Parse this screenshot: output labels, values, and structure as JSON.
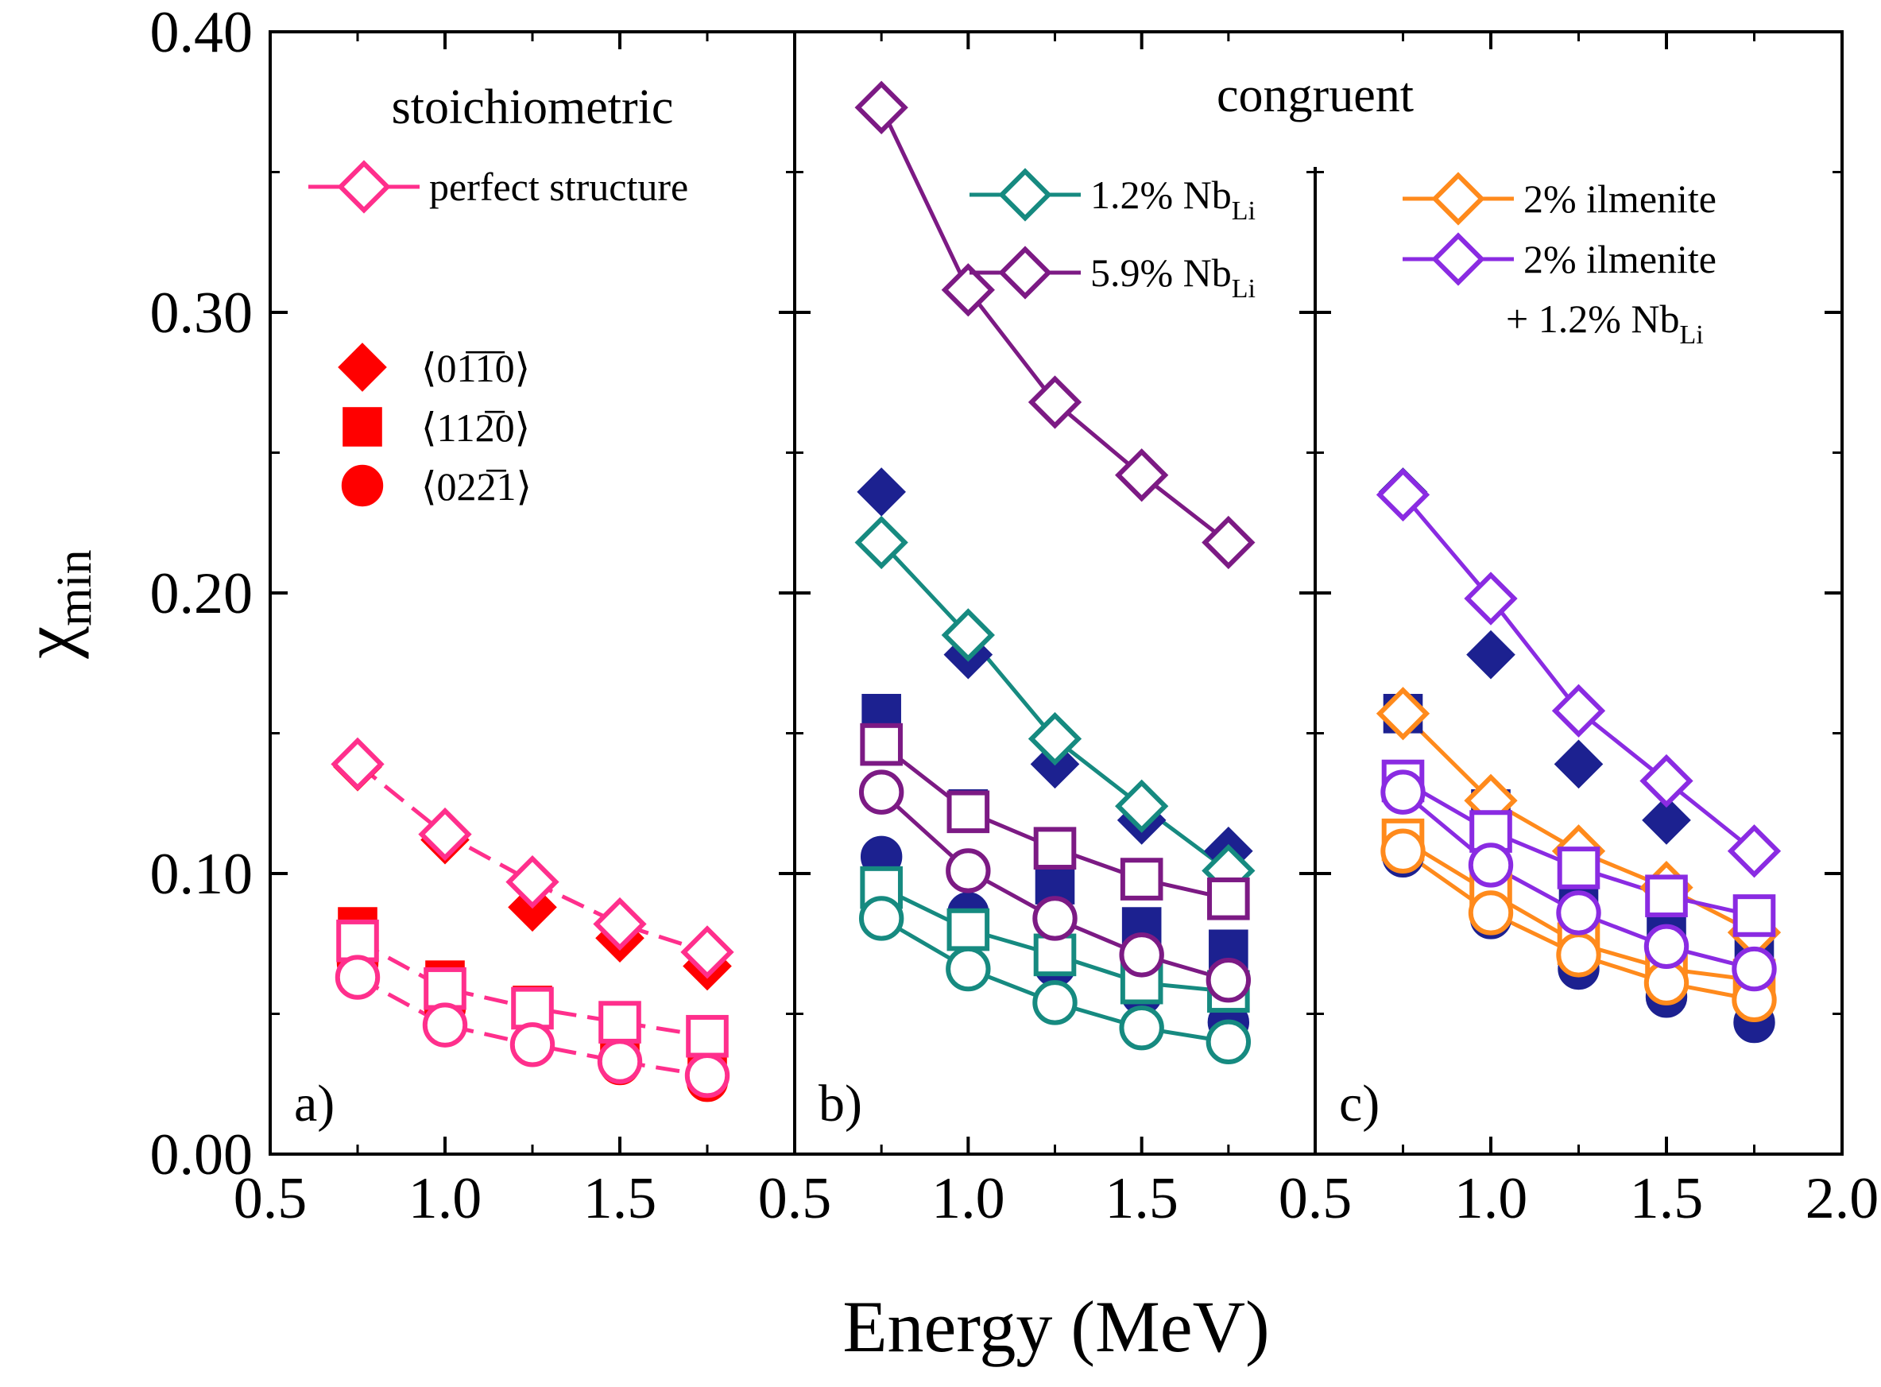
{
  "chart_data": {
    "type": "line",
    "ylabel": "χ",
    "ylabel_sub": "min",
    "xlabel": "Energy (MeV)",
    "ylim": [
      0.0,
      0.4
    ],
    "y_ticks": [
      0.0,
      0.1,
      0.2,
      0.3,
      0.4
    ],
    "y_tick_labels": [
      "0.00",
      "0.10",
      "0.20",
      "0.30",
      "0.40"
    ],
    "shared_x_tick_labels": [
      "0.5",
      "1.0",
      "1.5",
      "0.5",
      "1.0",
      "1.5",
      "0.5",
      "1.0",
      "1.5",
      "2.0"
    ],
    "colors": {
      "red": "#ff0000",
      "pink": "#ff2f8c",
      "navy": "#1c2190",
      "teal": "#168a80",
      "purple": "#7c1a84",
      "orange": "#ff8a1c",
      "violet": "#8a2be2"
    },
    "panels": [
      {
        "id": "a",
        "label": "a)",
        "title": "stoichiometric",
        "xlim": [
          0.5,
          2.0
        ],
        "legend_lines": [
          {
            "text": "perfect structure",
            "marker": "diamond",
            "color": "#ff2f8c"
          }
        ],
        "marker_legend": [
          {
            "marker": "diamond",
            "text": "⟨01̅1̅0⟩"
          },
          {
            "marker": "square",
            "text": "⟨112̅0⟩"
          },
          {
            "marker": "circle",
            "text": "⟨022̅1⟩"
          }
        ],
        "series": [
          {
            "name": "perfect structure ⟨01-10⟩",
            "marker": "diamond",
            "fill": "none",
            "line": "dashed",
            "color": "#ff2f8c",
            "x": [
              0.75,
              1.0,
              1.25,
              1.5,
              1.75
            ],
            "y": [
              0.139,
              0.114,
              0.097,
              0.082,
              0.072
            ]
          },
          {
            "name": "perfect structure ⟨11-20⟩",
            "marker": "square",
            "fill": "none",
            "line": "dashed",
            "color": "#ff2f8c",
            "x": [
              0.75,
              1.0,
              1.25,
              1.5,
              1.75
            ],
            "y": [
              0.076,
              0.059,
              0.052,
              0.047,
              0.042
            ]
          },
          {
            "name": "perfect structure ⟨02-21⟩",
            "marker": "circle",
            "fill": "none",
            "line": "dashed",
            "color": "#ff2f8c",
            "x": [
              0.75,
              1.0,
              1.25,
              1.5,
              1.75
            ],
            "y": [
              0.063,
              0.046,
              0.039,
              0.033,
              0.028
            ]
          },
          {
            "name": "stoichiometric ⟨01-10⟩",
            "marker": "diamond",
            "fill": "solid",
            "line": "none",
            "color": "#ff0000",
            "x": [
              0.75,
              1.0,
              1.25,
              1.5,
              1.75
            ],
            "y": [
              0.138,
              0.112,
              0.088,
              0.077,
              0.067
            ]
          },
          {
            "name": "stoichiometric ⟨11-20⟩",
            "marker": "square",
            "fill": "solid",
            "line": "none",
            "color": "#ff0000",
            "x": [
              0.75,
              1.0,
              1.25,
              1.5,
              1.75
            ],
            "y": [
              0.081,
              0.062,
              0.053,
              0.041,
              0.035
            ]
          },
          {
            "name": "stoichiometric ⟨02-21⟩",
            "marker": "circle",
            "fill": "solid",
            "line": "none",
            "color": "#ff0000",
            "x": [
              0.75,
              1.0,
              1.25,
              1.5,
              1.75
            ],
            "y": [
              0.068,
              0.052,
              0.039,
              0.032,
              0.026
            ]
          }
        ]
      },
      {
        "id": "b",
        "label": "b)",
        "title": "congruent",
        "xlim": [
          0.5,
          2.0
        ],
        "legend_lines": [
          {
            "text": "1.2% Nb",
            "sub": "Li",
            "marker": "diamond",
            "color": "#168a80"
          },
          {
            "text": "5.9% Nb",
            "sub": "Li",
            "marker": "diamond",
            "color": "#7c1a84"
          }
        ],
        "series": [
          {
            "name": "congruent ⟨01-10⟩",
            "marker": "diamond",
            "fill": "solid",
            "line": "none",
            "color": "#1c2190",
            "x": [
              0.75,
              1.0,
              1.25,
              1.5,
              1.75
            ],
            "y": [
              0.236,
              0.178,
              0.139,
              0.119,
              0.108
            ]
          },
          {
            "name": "congruent ⟨11-20⟩",
            "marker": "square",
            "fill": "solid",
            "line": "none",
            "color": "#1c2190",
            "x": [
              0.75,
              1.0,
              1.25,
              1.5,
              1.75
            ],
            "y": [
              0.157,
              0.123,
              0.096,
              0.081,
              0.073
            ]
          },
          {
            "name": "congruent ⟨02-21⟩",
            "marker": "circle",
            "fill": "solid",
            "line": "none",
            "color": "#1c2190",
            "x": [
              0.75,
              1.0,
              1.25,
              1.5,
              1.75
            ],
            "y": [
              0.106,
              0.086,
              0.067,
              0.057,
              0.047
            ]
          },
          {
            "name": "1.2% Nb_Li ⟨01-10⟩",
            "marker": "diamond",
            "fill": "none",
            "line": "solid",
            "color": "#168a80",
            "x": [
              0.75,
              1.0,
              1.25,
              1.5,
              1.75
            ],
            "y": [
              0.218,
              0.185,
              0.148,
              0.124,
              0.101
            ]
          },
          {
            "name": "1.2% Nb_Li ⟨11-20⟩",
            "marker": "square",
            "fill": "none",
            "line": "solid",
            "color": "#168a80",
            "x": [
              0.75,
              1.0,
              1.25,
              1.5,
              1.75
            ],
            "y": [
              0.095,
              0.08,
              0.071,
              0.061,
              0.058
            ]
          },
          {
            "name": "1.2% Nb_Li ⟨02-21⟩",
            "marker": "circle",
            "fill": "none",
            "line": "solid",
            "color": "#168a80",
            "x": [
              0.75,
              1.0,
              1.25,
              1.5,
              1.75
            ],
            "y": [
              0.084,
              0.066,
              0.054,
              0.045,
              0.04
            ]
          },
          {
            "name": "5.9% Nb_Li ⟨01-10⟩",
            "marker": "diamond",
            "fill": "none",
            "line": "solid",
            "color": "#7c1a84",
            "x": [
              0.75,
              1.0,
              1.25,
              1.5,
              1.75
            ],
            "y": [
              0.373,
              0.308,
              0.268,
              0.242,
              0.218
            ]
          },
          {
            "name": "5.9% Nb_Li ⟨11-20⟩",
            "marker": "square",
            "fill": "none",
            "line": "solid",
            "color": "#7c1a84",
            "x": [
              0.75,
              1.0,
              1.25,
              1.5,
              1.75
            ],
            "y": [
              0.146,
              0.122,
              0.109,
              0.098,
              0.091
            ]
          },
          {
            "name": "5.9% Nb_Li ⟨02-21⟩",
            "marker": "circle",
            "fill": "none",
            "line": "solid",
            "color": "#7c1a84",
            "x": [
              0.75,
              1.0,
              1.25,
              1.5,
              1.75
            ],
            "y": [
              0.129,
              0.101,
              0.084,
              0.071,
              0.062
            ]
          }
        ]
      },
      {
        "id": "c",
        "label": "c)",
        "title": "",
        "xlim": [
          0.5,
          2.0
        ],
        "legend_lines": [
          {
            "text": "2% ilmenite",
            "marker": "diamond",
            "color": "#ff8a1c"
          },
          {
            "text": "2% ilmenite",
            "marker": "diamond",
            "color": "#8a2be2"
          }
        ],
        "legend_extra": {
          "text": "+ 1.2% Nb",
          "sub": "Li"
        },
        "series": [
          {
            "name": "congruent ⟨01-10⟩",
            "marker": "diamond",
            "fill": "solid",
            "line": "none",
            "color": "#1c2190",
            "x": [
              0.75,
              1.0,
              1.25,
              1.5,
              1.75
            ],
            "y": [
              0.236,
              0.178,
              0.139,
              0.119,
              0.108
            ]
          },
          {
            "name": "congruent ⟨11-20⟩",
            "marker": "square",
            "fill": "solid",
            "line": "none",
            "color": "#1c2190",
            "x": [
              0.75,
              1.0,
              1.25,
              1.5,
              1.75
            ],
            "y": [
              0.157,
              0.123,
              0.096,
              0.081,
              0.073
            ]
          },
          {
            "name": "congruent ⟨02-21⟩",
            "marker": "circle",
            "fill": "solid",
            "line": "none",
            "color": "#1c2190",
            "x": [
              0.75,
              1.0,
              1.25,
              1.5,
              1.75
            ],
            "y": [
              0.106,
              0.084,
              0.066,
              0.056,
              0.047
            ]
          },
          {
            "name": "2% ilmenite ⟨01-10⟩",
            "marker": "diamond",
            "fill": "none",
            "line": "solid",
            "color": "#ff8a1c",
            "x": [
              0.75,
              1.0,
              1.25,
              1.5,
              1.75
            ],
            "y": [
              0.157,
              0.126,
              0.108,
              0.095,
              0.079
            ]
          },
          {
            "name": "2% ilmenite ⟨11-20⟩",
            "marker": "square",
            "fill": "none",
            "line": "solid",
            "color": "#ff8a1c",
            "x": [
              0.75,
              1.0,
              1.25,
              1.5,
              1.75
            ],
            "y": [
              0.112,
              0.093,
              0.075,
              0.066,
              0.062
            ]
          },
          {
            "name": "2% ilmenite ⟨02-21⟩",
            "marker": "circle",
            "fill": "none",
            "line": "solid",
            "color": "#ff8a1c",
            "x": [
              0.75,
              1.0,
              1.25,
              1.5,
              1.75
            ],
            "y": [
              0.108,
              0.086,
              0.071,
              0.061,
              0.055
            ]
          },
          {
            "name": "2% ilmenite + 1.2% Nb_Li ⟨01-10⟩",
            "marker": "diamond",
            "fill": "none",
            "line": "solid",
            "color": "#8a2be2",
            "x": [
              0.75,
              1.0,
              1.25,
              1.5,
              1.75
            ],
            "y": [
              0.235,
              0.198,
              0.158,
              0.133,
              0.108
            ]
          },
          {
            "name": "2% ilmenite + 1.2% Nb_Li ⟨11-20⟩",
            "marker": "square",
            "fill": "none",
            "line": "solid",
            "color": "#8a2be2",
            "x": [
              0.75,
              1.0,
              1.25,
              1.5,
              1.75
            ],
            "y": [
              0.133,
              0.115,
              0.102,
              0.092,
              0.085
            ]
          },
          {
            "name": "2% ilmenite + 1.2% Nb_Li ⟨02-21⟩",
            "marker": "circle",
            "fill": "none",
            "line": "solid",
            "color": "#8a2be2",
            "x": [
              0.75,
              1.0,
              1.25,
              1.5,
              1.75
            ],
            "y": [
              0.129,
              0.103,
              0.086,
              0.074,
              0.066
            ]
          }
        ]
      }
    ]
  }
}
